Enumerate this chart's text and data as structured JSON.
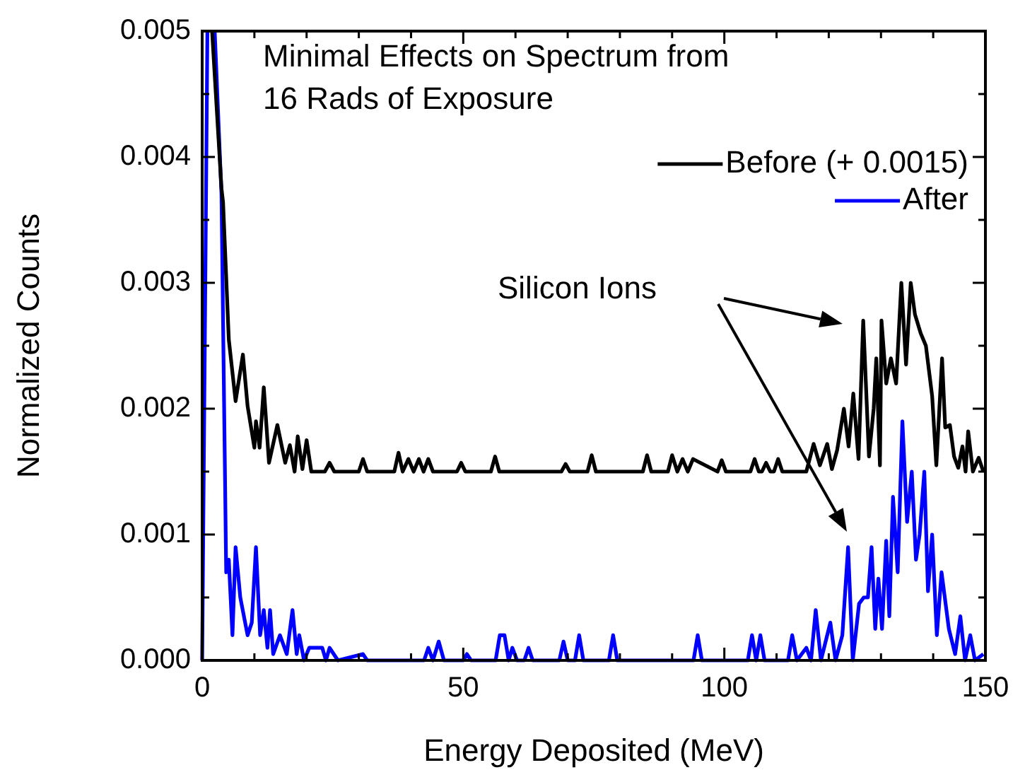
{
  "chart_data": {
    "type": "line",
    "title": "Minimal Effects on Spectrum from 16 Rads of Exposure",
    "xlabel": "Energy Deposited (MeV)",
    "ylabel": "Normalized Counts",
    "xlim": [
      0,
      150
    ],
    "ylim": [
      0,
      0.005
    ],
    "xticks": [
      0,
      {
        "value": 10,
        "label": null
      },
      {
        "value": 20,
        "label": null
      },
      {
        "value": 30,
        "label": null
      },
      {
        "value": 40,
        "label": null
      },
      50,
      {
        "value": 60,
        "label": null
      },
      {
        "value": 70,
        "label": null
      },
      {
        "value": 80,
        "label": null
      },
      {
        "value": 90,
        "label": null
      },
      100,
      {
        "value": 110,
        "label": null
      },
      {
        "value": 120,
        "label": null
      },
      {
        "value": 130,
        "label": null
      },
      {
        "value": 140,
        "label": null
      },
      150
    ],
    "yticks": [
      {
        "value": 0,
        "label": "0.000"
      },
      {
        "value": 0.0005,
        "label": null
      },
      {
        "value": 0.001,
        "label": "0.001"
      },
      {
        "value": 0.0015,
        "label": null
      },
      {
        "value": 0.002,
        "label": "0.002"
      },
      {
        "value": 0.0025,
        "label": null
      },
      {
        "value": 0.003,
        "label": "0.003"
      },
      {
        "value": 0.0035,
        "label": null
      },
      {
        "value": 0.004,
        "label": "0.004"
      },
      {
        "value": 0.0045,
        "label": null
      },
      {
        "value": 0.005,
        "label": "0.005"
      }
    ],
    "legend": "top right",
    "annotations": [
      "Silicon Ions"
    ],
    "series": [
      {
        "name": "Before (+ 0.0015)",
        "color": "#000000",
        "x": [
          1.9,
          3.7,
          4.0,
          5.1,
          6.4,
          7.8,
          8.7,
          10.0,
          10.3,
          11.0,
          11.8,
          12.8,
          14.4,
          15.9,
          16.8,
          17.7,
          18.3,
          19.2,
          20.0,
          20.9,
          23.5,
          24.4,
          25.3,
          30.0,
          30.8,
          31.6,
          36.8,
          37.6,
          38.4,
          39.5,
          40.5,
          41.5,
          42.4,
          43.3,
          44.2,
          48.8,
          49.6,
          50.4,
          55.3,
          56.1,
          56.9,
          68.8,
          69.6,
          70.4,
          73.8,
          74.6,
          75.4,
          84.4,
          85.2,
          86.0,
          89.2,
          90.0,
          91.0,
          92.0,
          93.0,
          94.0,
          98.7,
          99.5,
          100.3,
          105.0,
          105.8,
          106.6,
          107.2,
          108.0,
          108.8,
          109.5,
          110.3,
          111.1,
          115.7,
          117.1,
          118.3,
          119.7,
          120.6,
          121.6,
          122.9,
          123.8,
          124.7,
          125.7,
          126.6,
          127.7,
          128.6,
          129.1,
          129.8,
          130.1,
          131.0,
          131.9,
          132.9,
          133.9,
          134.8,
          135.7,
          136.5,
          137.6,
          138.6,
          139.8,
          140.6,
          141.7,
          142.3,
          143.2,
          144.0,
          144.8,
          145.6,
          146.2,
          146.7,
          147.6,
          148.7,
          149.6
        ],
        "values": [
          0.005,
          0.00375,
          0.00364,
          0.00255,
          0.00206,
          0.00243,
          0.00202,
          0.00169,
          0.0019,
          0.00169,
          0.00217,
          0.00157,
          0.00187,
          0.00157,
          0.00171,
          0.0015,
          0.00178,
          0.00152,
          0.00175,
          0.0015,
          0.0015,
          0.00157,
          0.0015,
          0.0015,
          0.0016,
          0.0015,
          0.0015,
          0.00165,
          0.0015,
          0.0016,
          0.0015,
          0.0016,
          0.0015,
          0.0016,
          0.0015,
          0.0015,
          0.00157,
          0.0015,
          0.0015,
          0.00162,
          0.0015,
          0.0015,
          0.00156,
          0.0015,
          0.0015,
          0.00163,
          0.0015,
          0.0015,
          0.00163,
          0.0015,
          0.0015,
          0.00163,
          0.0015,
          0.0016,
          0.0015,
          0.0016,
          0.0015,
          0.00159,
          0.0015,
          0.0015,
          0.0016,
          0.0015,
          0.0015,
          0.00157,
          0.0015,
          0.0015,
          0.0016,
          0.0015,
          0.0015,
          0.00172,
          0.00155,
          0.00172,
          0.00152,
          0.00167,
          0.002,
          0.0017,
          0.00212,
          0.0016,
          0.0027,
          0.00162,
          0.002,
          0.0024,
          0.00155,
          0.0027,
          0.0022,
          0.0024,
          0.0022,
          0.003,
          0.00235,
          0.003,
          0.00275,
          0.0026,
          0.0025,
          0.0021,
          0.00155,
          0.0024,
          0.00185,
          0.00187,
          0.00162,
          0.00153,
          0.0017,
          0.0015,
          0.00182,
          0.0015,
          0.00161,
          0.0015
        ]
      },
      {
        "name": "After",
        "color": "#0000ff",
        "x": [
          0,
          1.0,
          1.5,
          2.4,
          3.7,
          4.6,
          5.1,
          5.8,
          6.4,
          7.3,
          8.7,
          9.5,
          10.3,
          11.1,
          11.8,
          12.5,
          13.0,
          13.6,
          14.9,
          16.2,
          17.3,
          18.1,
          18.6,
          19.5,
          20.5,
          23.0,
          23.7,
          24.4,
          26.0,
          30.8,
          31.6,
          42.5,
          43.3,
          44.2,
          45.3,
          46.3,
          50.0,
          50.7,
          51.5,
          56.2,
          57.0,
          57.9,
          58.7,
          59.4,
          60.3,
          61.7,
          62.5,
          63.3,
          68.4,
          69.2,
          70.0,
          71.4,
          72.2,
          73.0,
          77.9,
          78.7,
          79.5,
          80.5,
          81.5,
          94.1,
          94.9,
          95.7,
          104.5,
          105.3,
          106.1,
          106.9,
          107.7,
          112.2,
          113.0,
          113.9,
          115.7,
          116.6,
          117.5,
          118.5,
          120.3,
          121.3,
          122.6,
          123.7,
          124.6,
          125.8,
          126.7,
          127.5,
          128.2,
          128.9,
          129.5,
          130.2,
          131.0,
          131.6,
          132.3,
          133.2,
          134.1,
          135.0,
          135.9,
          136.7,
          137.4,
          138.3,
          139.0,
          139.8,
          140.7,
          141.6,
          143.0,
          144.2,
          145.2,
          146.1,
          147.1,
          148.0,
          149.6
        ],
        "values": [
          0,
          0.005,
          null,
          0.005,
          0.0037,
          0.0007,
          0.0008,
          0.0002,
          0.0009,
          0.0005,
          0.0002,
          0.0003,
          0.0009,
          0.0002,
          0.0004,
          0.0001,
          0.0004,
          5e-05,
          0.0002,
          5e-05,
          0.0004,
          5e-05,
          0.0002,
          0,
          0.0001,
          0.0001,
          0,
          0.0001,
          0,
          5e-05,
          0,
          0,
          0.0001,
          0,
          0.00015,
          0,
          0,
          5e-05,
          0,
          0,
          0.0002,
          0.0002,
          0,
          0.0001,
          0,
          0,
          0.0001,
          0,
          0,
          0.00015,
          0,
          0,
          0.0002,
          0,
          0,
          0.0002,
          0,
          0,
          0,
          0,
          0.0002,
          0,
          0,
          0.0002,
          0,
          0.0002,
          0,
          0,
          0.0002,
          0,
          0.0001,
          0,
          0.0004,
          0,
          0.0003,
          0,
          0.0002,
          0.0009,
          0,
          0.00045,
          0.0005,
          0.0005,
          0.0009,
          0.00025,
          0.00065,
          0.00025,
          0.00095,
          0.00035,
          0.0013,
          0.0007,
          0.0019,
          0.0011,
          0.0015,
          0.0008,
          0.001,
          0.0015,
          0.00055,
          0.001,
          0.0002,
          0.0007,
          0.00025,
          5e-05,
          0.00035,
          0,
          0.0002,
          0,
          5e-05
        ]
      }
    ]
  }
}
